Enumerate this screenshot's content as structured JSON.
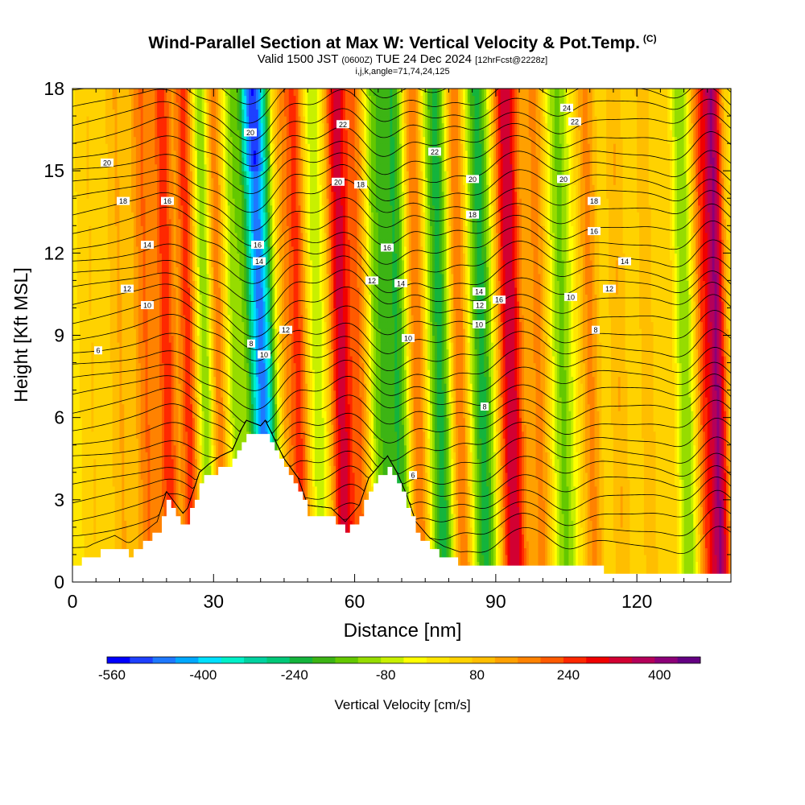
{
  "header": {
    "title": "Wind-Parallel Section at Max W: Vertical Velocity & Pot.Temp.",
    "title_suffix": "(C)",
    "valid_prefix": "Valid 1500 JST",
    "valid_utc": "(0600Z)",
    "valid_date": "TUE 24 Dec 2024",
    "forecast_info": "[12hrFcst@2228z]",
    "index_line": "i,j,k,angle=71,74,24,125"
  },
  "chart_data": {
    "type": "heatmap",
    "title": "Wind-Parallel Section at Max W: Vertical Velocity & Pot.Temp.",
    "xlabel": "Distance [nm]",
    "ylabel": "Height [Kft MSL]",
    "xlim": [
      0,
      140
    ],
    "ylim": [
      0,
      18
    ],
    "x_ticks": [
      0,
      30,
      60,
      90,
      120
    ],
    "y_ticks": [
      0,
      3,
      6,
      9,
      12,
      15,
      18
    ],
    "x_tick_labels": [
      "0",
      "30",
      "60",
      "90",
      "120"
    ],
    "y_tick_labels": [
      "0",
      "3",
      "6",
      "9",
      "12",
      "15",
      "18"
    ],
    "colorbar": {
      "label": "Vertical Velocity [cm/s]",
      "min": -560,
      "max": 480,
      "step": 40,
      "tick_values": [
        -560,
        -400,
        -240,
        -80,
        80,
        240,
        400
      ],
      "tick_labels": [
        "-560",
        "-400",
        "-240",
        "-80",
        "80",
        "240",
        "400"
      ],
      "colors": [
        "#0000ff",
        "#1e40ff",
        "#1e78ff",
        "#00a8ff",
        "#00e0ff",
        "#00f0c8",
        "#00d2a0",
        "#00c878",
        "#14b43c",
        "#3cb414",
        "#64c800",
        "#96dc00",
        "#c8f000",
        "#ffff00",
        "#ffe600",
        "#ffd200",
        "#ffbe00",
        "#ffa000",
        "#ff8200",
        "#ff5a00",
        "#ff2800",
        "#f00000",
        "#d20032",
        "#b4005a",
        "#8c0078",
        "#640082"
      ]
    },
    "velocity_bands": [
      {
        "x": 4,
        "peak": 60,
        "width": 2.5
      },
      {
        "x": 10,
        "peak": 100,
        "width": 2.5
      },
      {
        "x": 15.5,
        "peak": 180,
        "width": 2.5
      },
      {
        "x": 20,
        "peak": 240,
        "width": 2
      },
      {
        "x": 24.5,
        "peak": 240,
        "width": 2
      },
      {
        "x": 28.5,
        "peak": -200,
        "width": 2
      },
      {
        "x": 30.5,
        "peak": 220,
        "width": 2
      },
      {
        "x": 34.5,
        "peak": -120,
        "width": 2
      },
      {
        "x": 40,
        "peak": -480,
        "width": 2.8
      },
      {
        "x": 45,
        "peak": 120,
        "width": 2
      },
      {
        "x": 48,
        "peak": 220,
        "width": 2
      },
      {
        "x": 52,
        "peak": -100,
        "width": 2
      },
      {
        "x": 57,
        "peak": 320,
        "width": 2.5
      },
      {
        "x": 61,
        "peak": 160,
        "width": 2
      },
      {
        "x": 65,
        "peak": -160,
        "width": 2.2
      },
      {
        "x": 69,
        "peak": -220,
        "width": 2.5
      },
      {
        "x": 73,
        "peak": 200,
        "width": 2
      },
      {
        "x": 78,
        "peak": -240,
        "width": 2.5
      },
      {
        "x": 82,
        "peak": 200,
        "width": 2
      },
      {
        "x": 87,
        "peak": -240,
        "width": 2.6
      },
      {
        "x": 93,
        "peak": 340,
        "width": 2.8
      },
      {
        "x": 99,
        "peak": 150,
        "width": 2.2
      },
      {
        "x": 104,
        "peak": -150,
        "width": 2.3
      },
      {
        "x": 110,
        "peak": 150,
        "width": 2.2
      },
      {
        "x": 116,
        "peak": 100,
        "width": 2.2
      },
      {
        "x": 122,
        "peak": 80,
        "width": 2.2
      },
      {
        "x": 127,
        "peak": 70,
        "width": 2.2
      },
      {
        "x": 130,
        "peak": -150,
        "width": 2.2
      },
      {
        "x": 134,
        "peak": 200,
        "width": 2
      },
      {
        "x": 137,
        "peak": 360,
        "width": 2
      }
    ],
    "terrain": [
      {
        "x": 0,
        "y": 0.6
      },
      {
        "x": 4.5,
        "y": 1
      },
      {
        "x": 9,
        "y": 1.3
      },
      {
        "x": 12,
        "y": 1
      },
      {
        "x": 18,
        "y": 1.8
      },
      {
        "x": 20,
        "y": 2.9
      },
      {
        "x": 23.5,
        "y": 2.1
      },
      {
        "x": 24.5,
        "y": 2.3
      },
      {
        "x": 27,
        "y": 3.6
      },
      {
        "x": 29,
        "y": 3.9
      },
      {
        "x": 31.5,
        "y": 4.2
      },
      {
        "x": 34,
        "y": 4.4
      },
      {
        "x": 36,
        "y": 5.2
      },
      {
        "x": 37,
        "y": 5.5
      },
      {
        "x": 40,
        "y": 5.3
      },
      {
        "x": 41,
        "y": 5.5
      },
      {
        "x": 43,
        "y": 4.8
      },
      {
        "x": 45,
        "y": 4.1
      },
      {
        "x": 48,
        "y": 3.4
      },
      {
        "x": 50,
        "y": 2.4
      },
      {
        "x": 55,
        "y": 2.3
      },
      {
        "x": 58,
        "y": 1.8
      },
      {
        "x": 61,
        "y": 2.4
      },
      {
        "x": 63,
        "y": 3.4
      },
      {
        "x": 65,
        "y": 3.8
      },
      {
        "x": 67,
        "y": 4.2
      },
      {
        "x": 69,
        "y": 3.6
      },
      {
        "x": 71,
        "y": 2.8
      },
      {
        "x": 73,
        "y": 1.8
      },
      {
        "x": 76,
        "y": 1.2
      },
      {
        "x": 79,
        "y": 0.9
      },
      {
        "x": 84,
        "y": 0.6
      },
      {
        "x": 140,
        "y": 0.3
      }
    ],
    "theta_contours": [
      {
        "label": "6",
        "base": 3.4
      },
      {
        "label": "8",
        "base": 6.3
      },
      {
        "label": "10",
        "base": 9.5
      },
      {
        "label": "12",
        "base": 10.3
      },
      {
        "label": "14",
        "base": 12.0
      },
      {
        "label": "16",
        "base": 13.8
      },
      {
        "label": "18",
        "base": 14.6
      },
      {
        "label": "20",
        "base": 15.3
      },
      {
        "label": "22",
        "base": 16.8
      },
      {
        "label": "24",
        "base": 17.5
      }
    ]
  }
}
